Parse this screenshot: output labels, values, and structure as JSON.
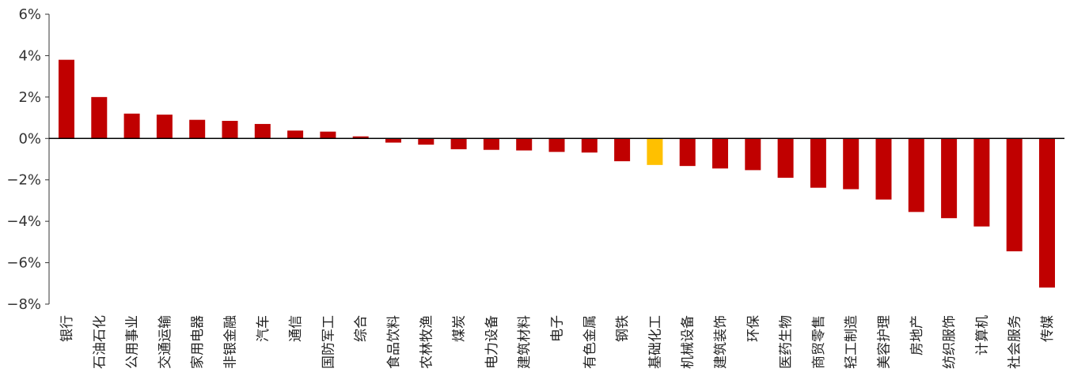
{
  "chart_data": {
    "type": "bar",
    "title": "",
    "xlabel": "",
    "ylabel": "",
    "ylim": [
      -8,
      6
    ],
    "ytick_step": 2,
    "ytick_suffix": "%",
    "grid": false,
    "legend": "none",
    "colors": {
      "default": "#C00000",
      "highlight": "#FFC000"
    },
    "highlight_category": "基础化工",
    "categories": [
      "银行",
      "石油石化",
      "公用事业",
      "交通运输",
      "家用电器",
      "非银金融",
      "汽车",
      "通信",
      "国防军工",
      "综合",
      "食品饮料",
      "农林牧渔",
      "煤炭",
      "电力设备",
      "建筑材料",
      "电子",
      "有色金属",
      "钢铁",
      "基础化工",
      "机械设备",
      "建筑装饰",
      "环保",
      "医药生物",
      "商贸零售",
      "轻工制造",
      "美容护理",
      "房地产",
      "纺织服饰",
      "计算机",
      "社会服务",
      "传媒"
    ],
    "values": [
      3.8,
      2.0,
      1.2,
      1.15,
      0.9,
      0.85,
      0.7,
      0.38,
      0.33,
      0.1,
      -0.2,
      -0.3,
      -0.52,
      -0.55,
      -0.58,
      -0.65,
      -0.68,
      -1.1,
      -1.28,
      -1.33,
      -1.45,
      -1.53,
      -1.9,
      -2.38,
      -2.45,
      -2.95,
      -3.55,
      -3.85,
      -4.25,
      -5.45,
      -7.2
    ]
  }
}
